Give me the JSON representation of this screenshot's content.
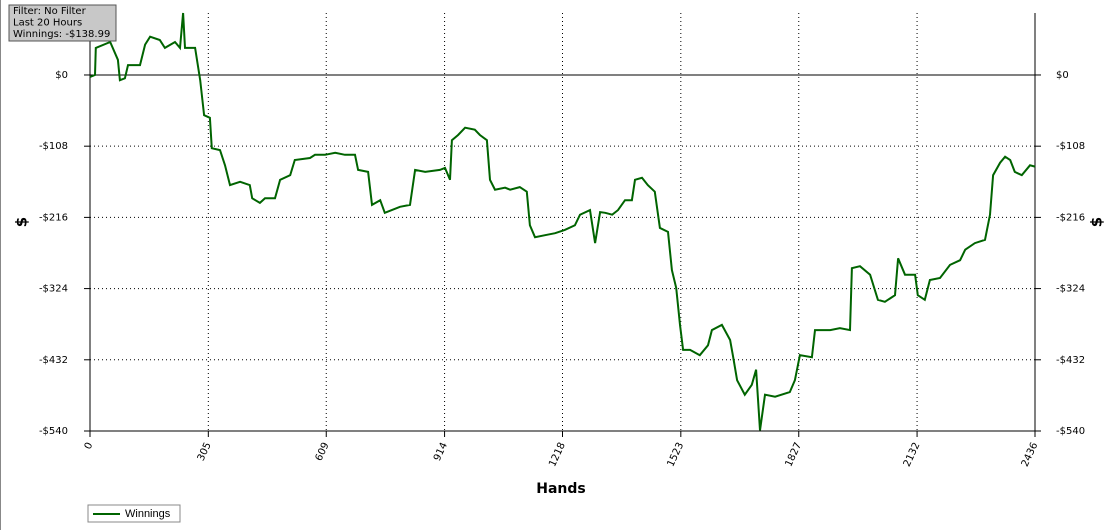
{
  "chart_data": {
    "type": "line",
    "annotations": [
      "Filter: No Filter",
      "Last 20 Hours",
      "Winnings: -$138.99"
    ],
    "x_label": "Hands",
    "y_label": "$",
    "xlim": [
      0,
      2436
    ],
    "xticks": [
      0,
      305,
      609,
      914,
      1218,
      1523,
      1827,
      2132,
      2436
    ],
    "ylim": [
      -540,
      94
    ],
    "yticks": [
      {
        "value": -540,
        "label": "-$540"
      },
      {
        "value": -432,
        "label": "-$432"
      },
      {
        "value": -324,
        "label": "-$324"
      },
      {
        "value": -216,
        "label": "-$216"
      },
      {
        "value": -108,
        "label": "-$108"
      },
      {
        "value": 0,
        "label": "$0"
      }
    ],
    "grid": true,
    "legend": "bottom-left",
    "series": [
      {
        "name": "Winnings",
        "color": "#006400",
        "x": [
          0,
          13,
          15,
          52,
          72,
          77,
          90,
          98,
          129,
          142,
          155,
          180,
          193,
          219,
          232,
          240,
          245,
          271,
          284,
          294,
          309,
          314,
          335,
          348,
          361,
          387,
          412,
          418,
          438,
          451,
          477,
          490,
          516,
          528,
          567,
          580,
          606,
          632,
          657,
          683,
          691,
          717,
          727,
          748,
          760,
          778,
          799,
          825,
          838,
          864,
          902,
          915,
          928,
          933,
          949,
          967,
          992,
          1005,
          1023,
          1031,
          1044,
          1070,
          1083,
          1108,
          1126,
          1134,
          1147,
          1173,
          1199,
          1224,
          1250,
          1263,
          1289,
          1302,
          1315,
          1328,
          1346,
          1361,
          1379,
          1397,
          1405,
          1423,
          1438,
          1456,
          1469,
          1490,
          1500,
          1511,
          1521,
          1529,
          1547,
          1572,
          1593,
          1603,
          1629,
          1650,
          1658,
          1668,
          1688,
          1706,
          1717,
          1727,
          1740,
          1766,
          1804,
          1817,
          1830,
          1861,
          1869,
          1908,
          1933,
          1959,
          1964,
          1985,
          2011,
          2031,
          2049,
          2075,
          2083,
          2101,
          2127,
          2134,
          2152,
          2165,
          2191,
          2217,
          2243,
          2256,
          2281,
          2307,
          2320,
          2328,
          2346,
          2359,
          2372,
          2384,
          2402,
          2423,
          2436
        ],
        "values": [
          -3,
          0,
          41,
          50,
          23,
          -8,
          -5,
          15,
          15,
          46,
          58,
          53,
          41,
          50,
          41,
          94,
          41,
          41,
          -8,
          -61,
          -65,
          -111,
          -114,
          -137,
          -167,
          -162,
          -167,
          -187,
          -194,
          -187,
          -187,
          -159,
          -152,
          -129,
          -126,
          -121,
          -121,
          -118,
          -121,
          -121,
          -144,
          -147,
          -197,
          -190,
          -209,
          -205,
          -200,
          -197,
          -144,
          -147,
          -144,
          -141,
          -159,
          -99,
          -91,
          -80,
          -83,
          -91,
          -99,
          -159,
          -174,
          -171,
          -174,
          -170,
          -177,
          -228,
          -246,
          -243,
          -240,
          -235,
          -228,
          -212,
          -205,
          -255,
          -208,
          -209,
          -212,
          -205,
          -190,
          -190,
          -159,
          -156,
          -167,
          -177,
          -232,
          -238,
          -296,
          -323,
          -379,
          -417,
          -417,
          -425,
          -410,
          -387,
          -379,
          -402,
          -428,
          -463,
          -485,
          -470,
          -447,
          -539,
          -485,
          -488,
          -481,
          -463,
          -425,
          -428,
          -387,
          -387,
          -384,
          -387,
          -293,
          -290,
          -303,
          -341,
          -344,
          -334,
          -278,
          -303,
          -303,
          -334,
          -341,
          -311,
          -308,
          -288,
          -281,
          -265,
          -255,
          -250,
          -212,
          -152,
          -133,
          -124,
          -129,
          -147,
          -152,
          -137,
          -139
        ]
      }
    ]
  }
}
